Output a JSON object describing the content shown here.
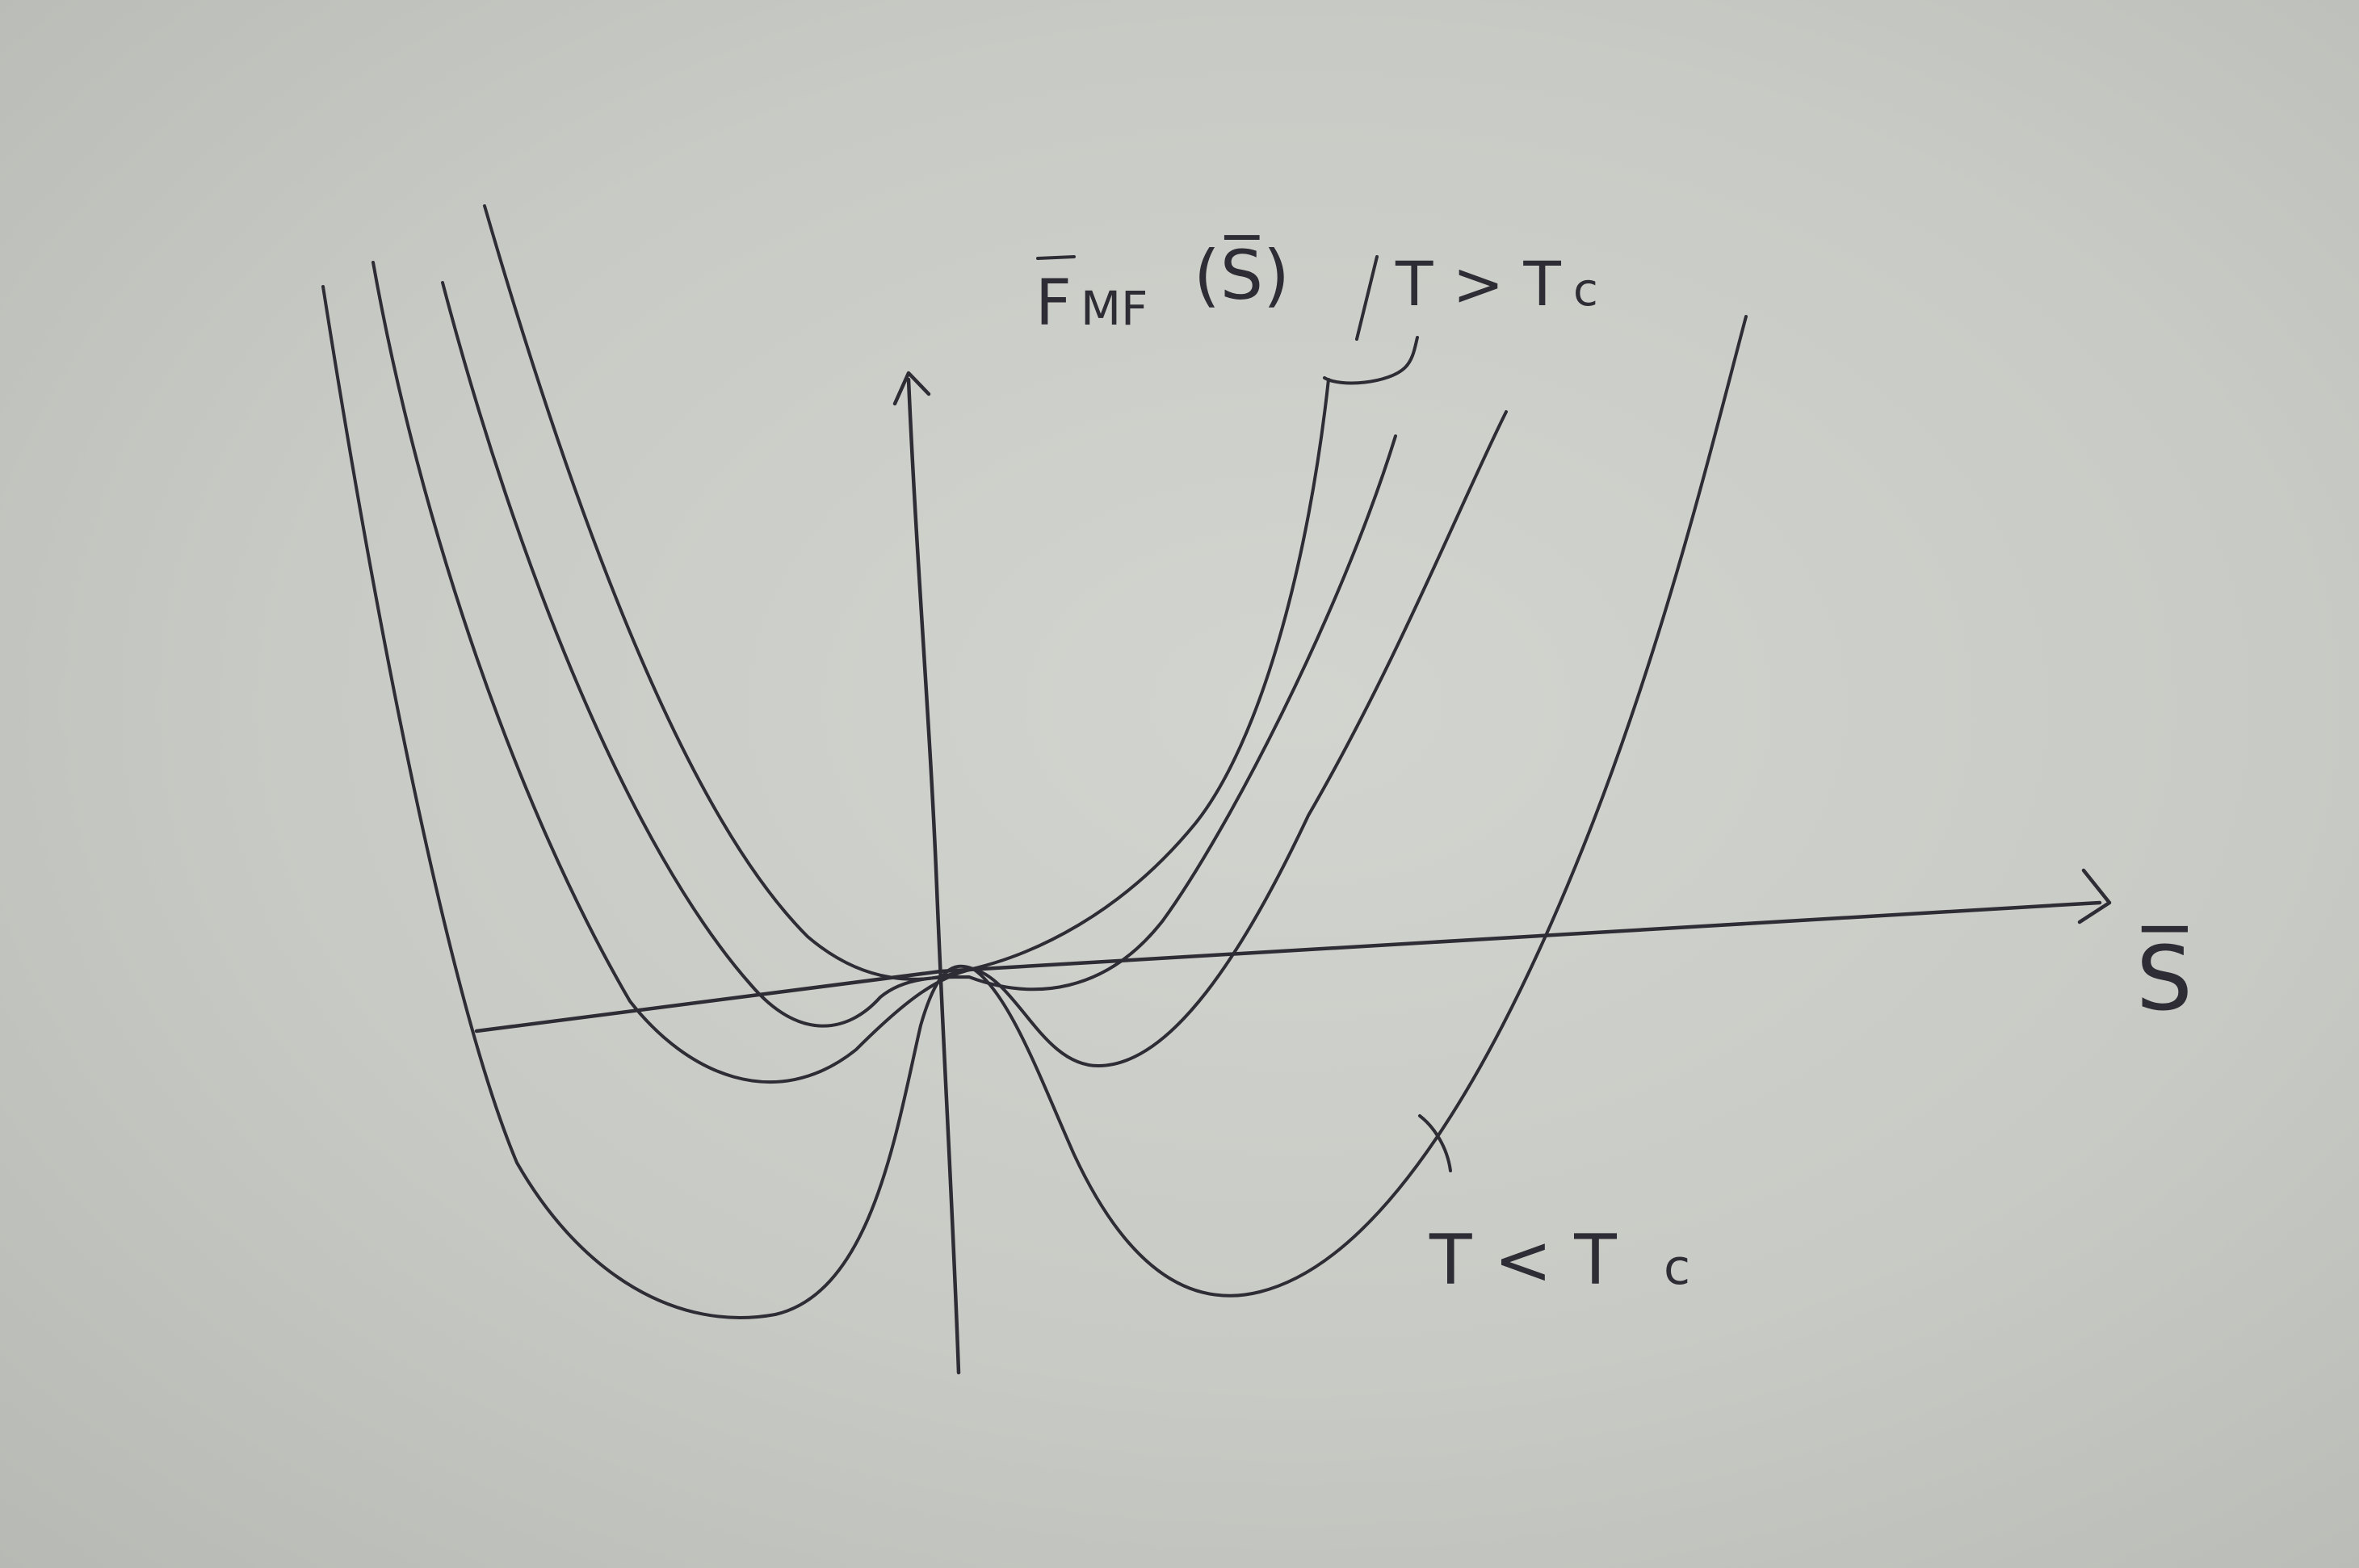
{
  "labels": {
    "y_axis": "Fₘₒ (S̅)",
    "y_axis_main": "F",
    "y_axis_sub": "MF",
    "y_axis_arg": "(S̅)",
    "x_axis": "S̅",
    "high_temp": "T > T",
    "high_temp_sub": "c",
    "low_temp": "T < T",
    "low_temp_sub": "c"
  },
  "chart_data": {
    "type": "line",
    "xlabel": "S̅",
    "ylabel": "F_MF(S̅)",
    "series": [
      {
        "name": "T > Tc",
        "values": []
      },
      {
        "name": "T < Tc",
        "values": []
      }
    ]
  },
  "colors": {
    "ink": "#2e2c34",
    "paper": "#cbcdc8"
  }
}
